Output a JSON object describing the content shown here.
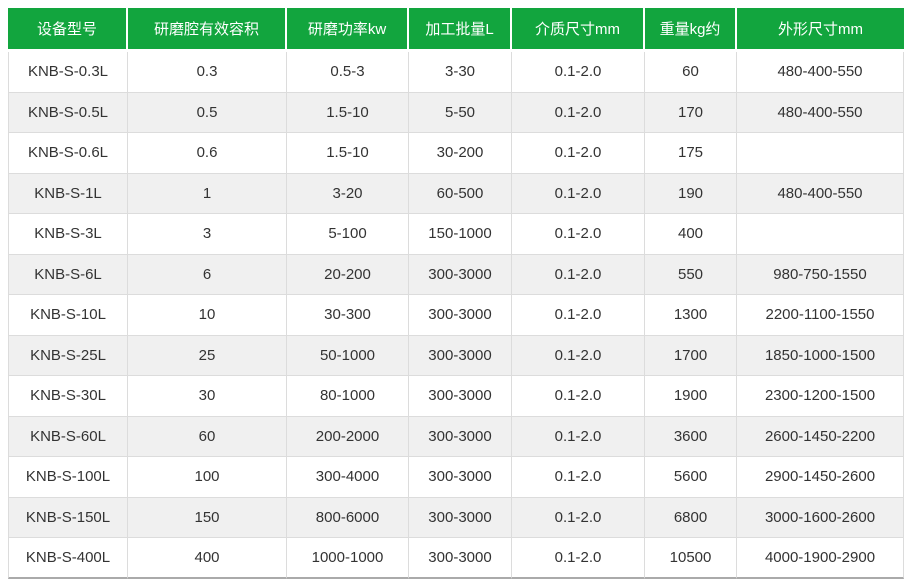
{
  "chart_data": {
    "type": "table",
    "columns": [
      "设备型号",
      "研磨腔有效容积",
      "研磨功率kw",
      "加工批量L",
      "介质尺寸mm",
      "重量kg约",
      "外形尺寸mm"
    ],
    "rows": [
      [
        "KNB-S-0.3L",
        "0.3",
        "0.5-3",
        "3-30",
        "0.1-2.0",
        "60",
        "480-400-550"
      ],
      [
        "KNB-S-0.5L",
        "0.5",
        "1.5-10",
        "5-50",
        "0.1-2.0",
        "170",
        "480-400-550"
      ],
      [
        "KNB-S-0.6L",
        "0.6",
        "1.5-10",
        "30-200",
        "0.1-2.0",
        "175",
        ""
      ],
      [
        "KNB-S-1L",
        "1",
        "3-20",
        "60-500",
        "0.1-2.0",
        "190",
        "480-400-550"
      ],
      [
        "KNB-S-3L",
        "3",
        "5-100",
        "150-1000",
        "0.1-2.0",
        "400",
        ""
      ],
      [
        "KNB-S-6L",
        "6",
        "20-200",
        "300-3000",
        "0.1-2.0",
        "550",
        "980-750-1550"
      ],
      [
        "KNB-S-10L",
        "10",
        "30-300",
        "300-3000",
        "0.1-2.0",
        "1300",
        "2200-1100-1550"
      ],
      [
        "KNB-S-25L",
        "25",
        "50-1000",
        "300-3000",
        "0.1-2.0",
        "1700",
        "1850-1000-1500"
      ],
      [
        "KNB-S-30L",
        "30",
        "80-1000",
        "300-3000",
        "0.1-2.0",
        "1900",
        "2300-1200-1500"
      ],
      [
        "KNB-S-60L",
        "60",
        "200-2000",
        "300-3000",
        "0.1-2.0",
        "3600",
        "2600-1450-2200"
      ],
      [
        "KNB-S-100L",
        "100",
        "300-4000",
        "300-3000",
        "0.1-2.0",
        "5600",
        "2900-1450-2600"
      ],
      [
        "KNB-S-150L",
        "150",
        "800-6000",
        "300-3000",
        "0.1-2.0",
        "6800",
        "3000-1600-2600"
      ],
      [
        "KNB-S-400L",
        "400",
        "1000-1000",
        "300-3000",
        "0.1-2.0",
        "10500",
        "4000-1900-2900"
      ]
    ]
  },
  "colors": {
    "header_bg": "#12a53e",
    "header_text": "#ffffff",
    "row_bg": "#ffffff",
    "row_alt_bg": "#f0f0f0",
    "grid_line": "#dcdcdc",
    "outer_border": "#aaaaaa",
    "body_text": "#333333"
  }
}
